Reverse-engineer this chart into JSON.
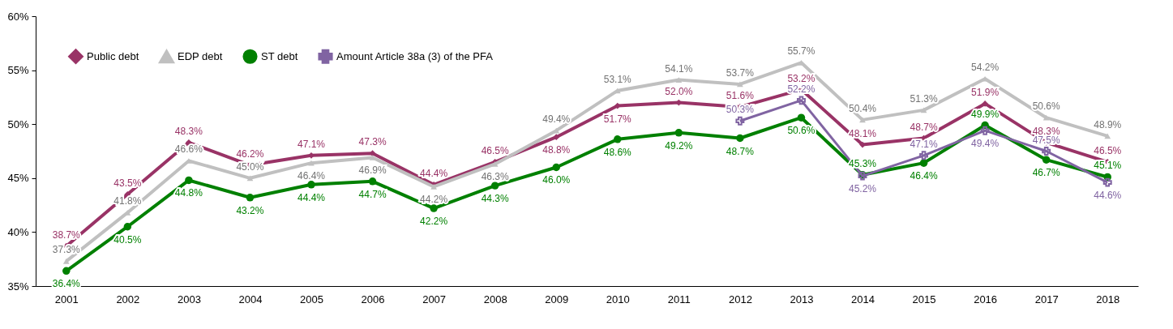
{
  "chart_data": {
    "type": "line",
    "categories": [
      "2001",
      "2002",
      "2003",
      "2004",
      "2005",
      "2006",
      "2007",
      "2008",
      "2009",
      "2010",
      "2011",
      "2012",
      "2013",
      "2014",
      "2015",
      "2016",
      "2017",
      "2018"
    ],
    "ylim": [
      35,
      60
    ],
    "yticks": [
      {
        "value": 35,
        "label": "35%"
      },
      {
        "value": 40,
        "label": "40%"
      },
      {
        "value": 45,
        "label": "45%"
      },
      {
        "value": 50,
        "label": "50%"
      },
      {
        "value": 55,
        "label": "55%"
      },
      {
        "value": 60,
        "label": "60%"
      }
    ],
    "legend": "top left",
    "series": [
      {
        "name": "Public debt",
        "color": "#993366",
        "marker": "diamond",
        "values": [
          38.7,
          43.5,
          48.3,
          46.2,
          47.1,
          47.3,
          44.4,
          46.5,
          48.8,
          51.7,
          52.0,
          51.6,
          53.2,
          48.1,
          48.7,
          51.9,
          48.3,
          46.5
        ],
        "value_labels": [
          "38.7%",
          "43.5%",
          "48.3%",
          "46.2%",
          "47.1%",
          "47.3%",
          "44.4%",
          "46.5%",
          "48.8%",
          "51.7%",
          "52.0%",
          "51.6%",
          "53.2%",
          "48.1%",
          "48.7%",
          "51.9%",
          "48.3%",
          "46.5%"
        ]
      },
      {
        "name": "EDP debt",
        "color": "#c0c0c0",
        "marker": "triangle",
        "values": [
          37.3,
          41.8,
          46.6,
          45.0,
          46.4,
          46.9,
          44.2,
          46.3,
          49.4,
          53.1,
          54.1,
          53.7,
          55.7,
          50.4,
          51.3,
          54.2,
          50.6,
          48.9
        ],
        "value_labels": [
          "37.3%",
          "41.8%",
          "46.6%",
          "45.0%",
          "46.4%",
          "46.9%",
          "44.2%",
          "46.3%",
          "49.4%",
          "53.1%",
          "54.1%",
          "53.7%",
          "55.7%",
          "50.4%",
          "51.3%",
          "54.2%",
          "50.6%",
          "48.9%"
        ]
      },
      {
        "name": "ST debt",
        "color": "#008000",
        "marker": "circle",
        "values": [
          36.4,
          40.5,
          44.8,
          43.2,
          44.4,
          44.7,
          42.2,
          44.3,
          46.0,
          48.6,
          49.2,
          48.7,
          50.6,
          45.3,
          46.4,
          49.9,
          46.7,
          45.1
        ],
        "value_labels": [
          "36.4%",
          "40.5%",
          "44.8%",
          "43.2%",
          "44.4%",
          "44.7%",
          "42.2%",
          "44.3%",
          "46.0%",
          "48.6%",
          "49.2%",
          "48.7%",
          "50.6%",
          "45.3%",
          "46.4%",
          "49.9%",
          "46.7%",
          "45.1%"
        ]
      },
      {
        "name": "Amount Article 38a (3) of the PFA",
        "color": "#8064a2",
        "marker": "cross",
        "values": [
          null,
          null,
          null,
          null,
          null,
          null,
          null,
          null,
          null,
          null,
          null,
          50.3,
          52.2,
          45.2,
          47.1,
          49.4,
          47.5,
          44.6
        ],
        "value_labels": [
          null,
          null,
          null,
          null,
          null,
          null,
          null,
          null,
          null,
          null,
          null,
          "50.3%",
          "52.2%",
          "45.2%",
          "47.1%",
          "49.4%",
          "47.5%",
          "44.6%"
        ]
      }
    ]
  }
}
